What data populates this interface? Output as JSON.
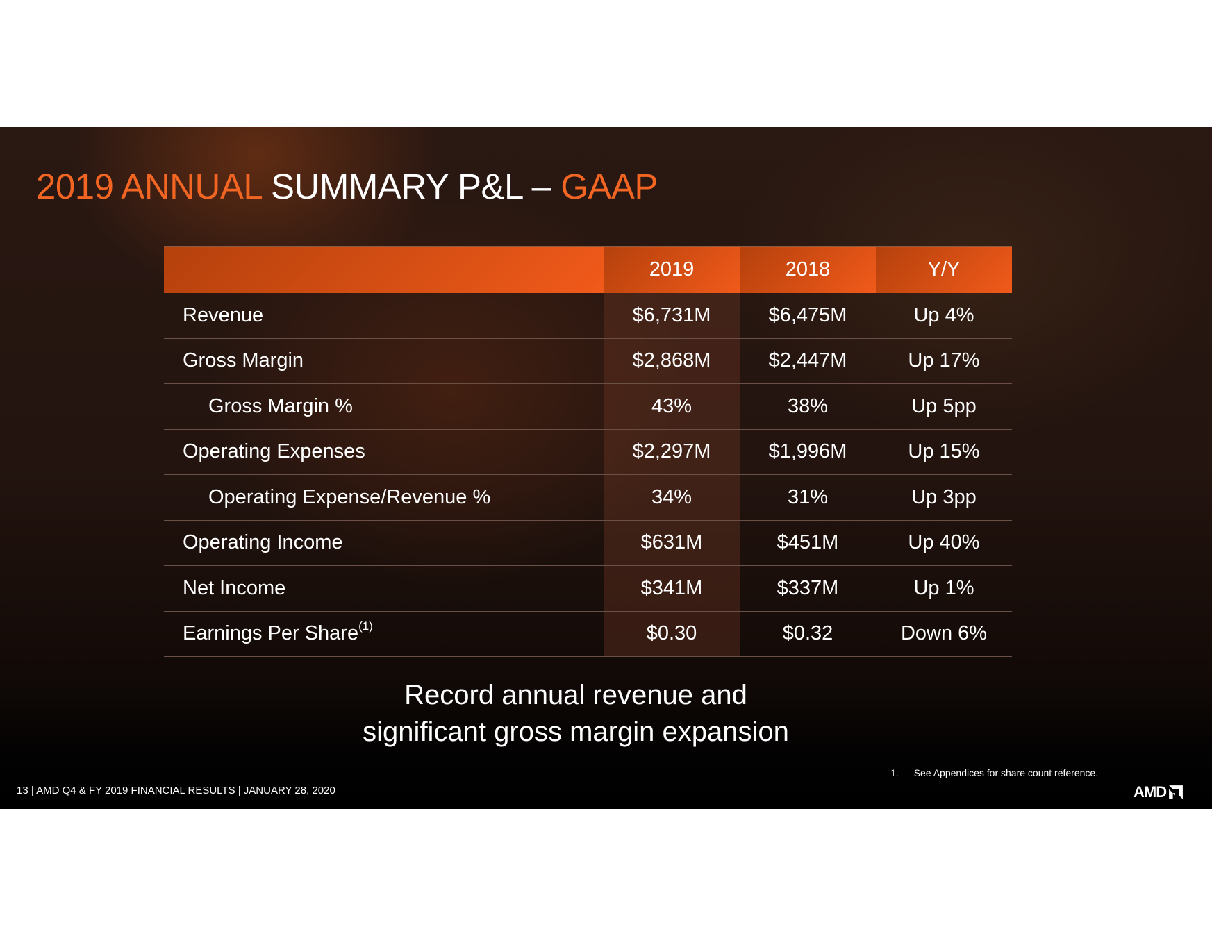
{
  "title": {
    "part1": "2019 ANNUAL",
    "part2": "SUMMARY P&L –",
    "part3": "GAAP"
  },
  "table": {
    "headers": [
      "",
      "2019",
      "2018",
      "Y/Y"
    ],
    "rows": [
      {
        "label": "Revenue",
        "v2019": "$6,731M",
        "v2018": "$6,475M",
        "yy": "Up 4%"
      },
      {
        "label": "Gross Margin",
        "v2019": "$2,868M",
        "v2018": "$2,447M",
        "yy": "Up 17%"
      },
      {
        "label": "Gross Margin %",
        "v2019": "43%",
        "v2018": "38%",
        "yy": "Up 5pp"
      },
      {
        "label": "Operating Expenses",
        "v2019": "$2,297M",
        "v2018": "$1,996M",
        "yy": "Up 15%"
      },
      {
        "label": "Operating Expense/Revenue %",
        "v2019": "34%",
        "v2018": "31%",
        "yy": "Up 3pp"
      },
      {
        "label": "Operating Income",
        "v2019": "$631M",
        "v2018": "$451M",
        "yy": "Up 40%"
      },
      {
        "label": "Net Income",
        "v2019": "$341M",
        "v2018": "$337M",
        "yy": "Up 1%"
      },
      {
        "label": "Earnings Per Share",
        "sup": "(1)",
        "v2019": "$0.30",
        "v2018": "$0.32",
        "yy": "Down 6%"
      }
    ]
  },
  "note": {
    "line1": "Record annual revenue and",
    "line2": "significant gross margin expansion"
  },
  "footnote": {
    "num": "1.",
    "text": "See Appendices for share count reference."
  },
  "footer": "13  |  AMD Q4 & FY 2019 FINANCIAL RESULTS  |  JANUARY 28, 2020",
  "logo": "AMD",
  "colors": {
    "accent": "#f26522"
  }
}
